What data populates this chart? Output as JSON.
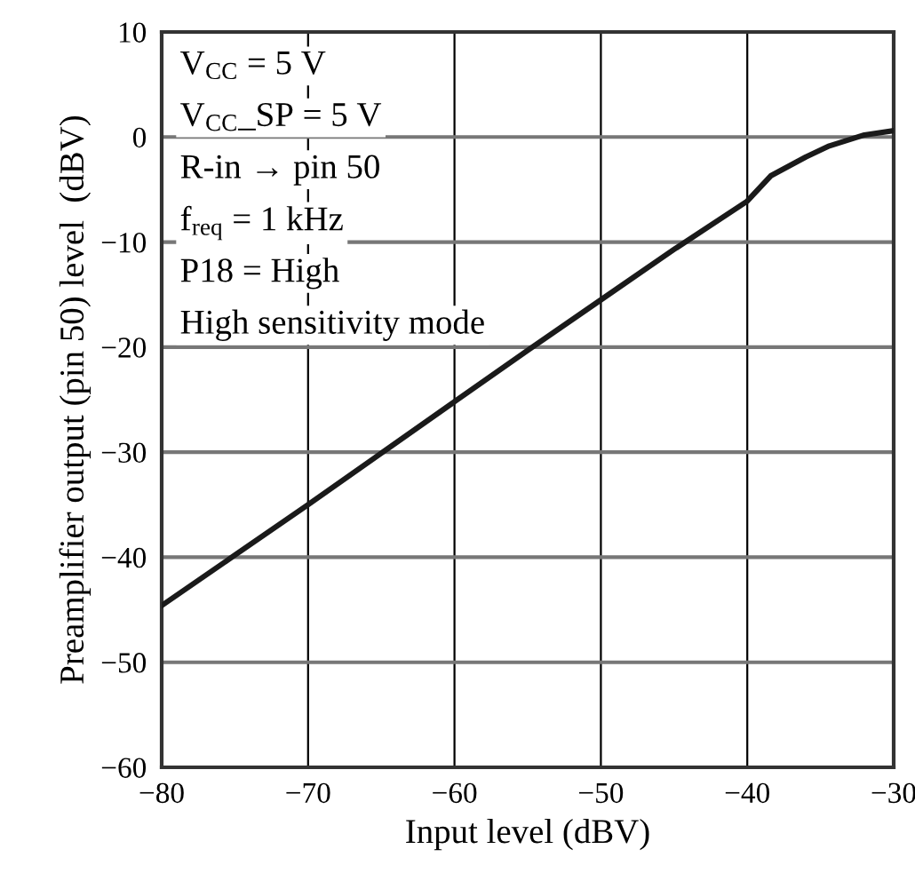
{
  "chart_data": {
    "type": "line",
    "xlabel": "Input level (dBV)",
    "ylabel": "Preamplifier output (pin 50) level  (dBV)",
    "x": [
      -80,
      -75,
      -70,
      -65,
      -60,
      -55,
      -50,
      -45,
      -40,
      -38.4,
      -36,
      -34.4,
      -32,
      -30
    ],
    "series": [
      {
        "color": "#1a1a1a",
        "values": [
          -44.6,
          -39.8,
          -35,
          -30.1,
          -25.2,
          -20.3,
          -15.5,
          -10.7,
          -6.1,
          -3.7,
          -1.9,
          -0.85,
          0.2,
          0.6
        ]
      }
    ],
    "xlim": [
      -80,
      -30
    ],
    "ylim": [
      -60,
      10
    ],
    "xticks": [
      {
        "value": -80,
        "label": "−80"
      },
      {
        "value": -70,
        "label": "−70"
      },
      {
        "value": -60,
        "label": "−60"
      },
      {
        "value": -50,
        "label": "−50"
      },
      {
        "value": -40,
        "label": "−40"
      },
      {
        "value": -30,
        "label": "−30"
      }
    ],
    "yticks": [
      {
        "value": -60,
        "label": "−60"
      },
      {
        "value": -50,
        "label": "−50"
      },
      {
        "value": -40,
        "label": "−40"
      },
      {
        "value": -30,
        "label": "−30"
      },
      {
        "value": -20,
        "label": "−20"
      },
      {
        "value": -10,
        "label": "−10"
      },
      0,
      10
    ],
    "grid": true,
    "marker": "none",
    "line_style": "solid",
    "annotations": [
      "V$_{CC}$ = 5 V",
      "V$_{CC}$_SP = 5 V",
      "R-in → pin 50",
      "f$_{req}$ = 1 kHz",
      "P18 = High",
      "High sensitivity mode"
    ]
  }
}
